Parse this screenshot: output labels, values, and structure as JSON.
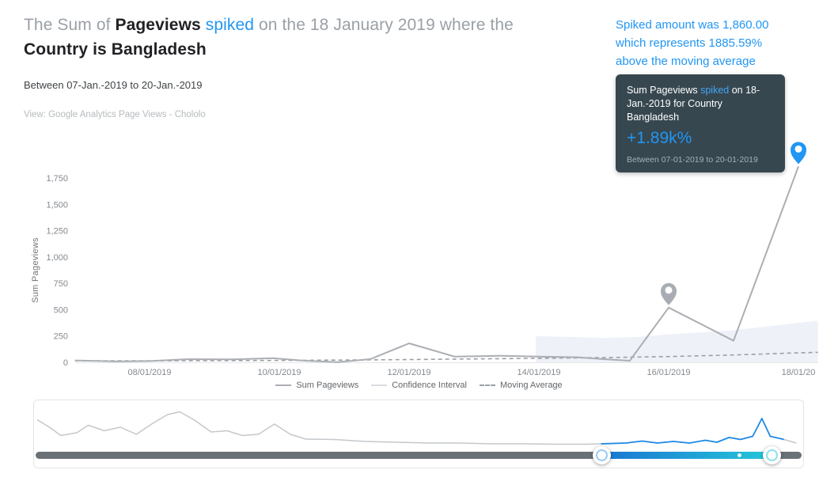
{
  "header": {
    "title_line1": [
      {
        "text": "The Sum of ",
        "style": "muted"
      },
      {
        "text": "Pageviews",
        "style": "strong"
      },
      {
        "text": " spiked ",
        "style": "accent"
      },
      {
        "text": "on the 18 January 2019 where the",
        "style": "muted"
      }
    ],
    "title_line2": [
      {
        "text": "Country is Bangladesh",
        "style": "strong"
      }
    ],
    "subtitle": "Between 07-Jan.-2019 to 20-Jan.-2019",
    "view_label": "View: Google Analytics Page Views - Chololo"
  },
  "annotation": {
    "lines": [
      "Spiked amount was 1,860.00",
      "which represents 1885.59%",
      "above the moving average"
    ]
  },
  "tooltip": {
    "text_parts": [
      "Sum Pageviews ",
      "spiked",
      " on 18-Jan.-2019 for Country Bangladesh"
    ],
    "value": "+1.89k%",
    "footer": "Between 07-01-2019 to 20-01-2019"
  },
  "chart_data": {
    "type": "line",
    "title": "",
    "xlabel": "",
    "ylabel": "Sum Pageviews",
    "ylim": [
      0,
      1950
    ],
    "x_domain_days": [
      7,
      18.3
    ],
    "x_tick_days": [
      8,
      10,
      12,
      14,
      16,
      18
    ],
    "x_tick_labels": [
      "08/01/2019",
      "10/01/2019",
      "12/01/2019",
      "14/01/2019",
      "16/01/2019",
      "18/01/20"
    ],
    "y_ticks": [
      0,
      250,
      500,
      750,
      1000,
      1250,
      1500,
      1750
    ],
    "y_tick_labels": [
      "0",
      "250",
      "500",
      "750",
      "1,000",
      "1,250",
      "1,500",
      "1,750"
    ],
    "series": [
      {
        "name": "Sum Pageviews",
        "points": [
          [
            6.85,
            18
          ],
          [
            7.5,
            8
          ],
          [
            8,
            12
          ],
          [
            8.6,
            30
          ],
          [
            9.3,
            28
          ],
          [
            9.9,
            40
          ],
          [
            10.4,
            15
          ],
          [
            10.9,
            2
          ],
          [
            11.4,
            30
          ],
          [
            12,
            180
          ],
          [
            12.7,
            55
          ],
          [
            13.4,
            62
          ],
          [
            14,
            55
          ],
          [
            14.6,
            48
          ],
          [
            15,
            30
          ],
          [
            15.4,
            15
          ],
          [
            16,
            520
          ],
          [
            17,
            205
          ],
          [
            18,
            1860
          ]
        ]
      },
      {
        "name": "Moving Average",
        "points": [
          [
            6.85,
            15
          ],
          [
            8,
            14
          ],
          [
            9,
            16
          ],
          [
            10,
            18
          ],
          [
            11,
            22
          ],
          [
            12,
            26
          ],
          [
            13,
            32
          ],
          [
            14,
            38
          ],
          [
            15,
            45
          ],
          [
            16,
            55
          ],
          [
            17,
            70
          ],
          [
            18,
            90
          ],
          [
            18.3,
            95
          ]
        ]
      },
      {
        "name": "Confidence Interval",
        "points": [
          [
            13.95,
            250
          ],
          [
            14.5,
            240
          ],
          [
            15,
            232
          ],
          [
            15.5,
            240
          ],
          [
            16,
            265
          ],
          [
            16.5,
            285
          ],
          [
            17,
            305
          ],
          [
            17.5,
            340
          ],
          [
            18,
            375
          ],
          [
            18.3,
            395
          ]
        ]
      }
    ],
    "markers": [
      {
        "name": "minor-spike-pin-icon",
        "day": 16,
        "value": 520,
        "color": "#a7adb3"
      },
      {
        "name": "major-spike-pin-icon",
        "day": 18,
        "value": 1860,
        "color": "#2196f3"
      }
    ],
    "legend": [
      {
        "label": "Sum Pageviews",
        "swatch": "solid-gray"
      },
      {
        "label": "Confidence Interval",
        "swatch": "solid-light"
      },
      {
        "label": "Moving Average",
        "swatch": "dashed"
      }
    ]
  },
  "minimap": {
    "points": [
      [
        0.0,
        0.71
      ],
      [
        0.016,
        0.52
      ],
      [
        0.031,
        0.31
      ],
      [
        0.052,
        0.38
      ],
      [
        0.067,
        0.57
      ],
      [
        0.088,
        0.43
      ],
      [
        0.109,
        0.52
      ],
      [
        0.13,
        0.34
      ],
      [
        0.15,
        0.6
      ],
      [
        0.171,
        0.84
      ],
      [
        0.187,
        0.91
      ],
      [
        0.207,
        0.69
      ],
      [
        0.228,
        0.4
      ],
      [
        0.249,
        0.43
      ],
      [
        0.269,
        0.31
      ],
      [
        0.29,
        0.34
      ],
      [
        0.311,
        0.6
      ],
      [
        0.332,
        0.34
      ],
      [
        0.352,
        0.22
      ],
      [
        0.389,
        0.21
      ],
      [
        0.43,
        0.16
      ],
      [
        0.471,
        0.14
      ],
      [
        0.513,
        0.12
      ],
      [
        0.554,
        0.12
      ],
      [
        0.596,
        0.1
      ],
      [
        0.637,
        0.1
      ],
      [
        0.679,
        0.09
      ],
      [
        0.72,
        0.09
      ],
      [
        0.739,
        0.1
      ],
      [
        0.772,
        0.12
      ],
      [
        0.793,
        0.17
      ],
      [
        0.813,
        0.12
      ],
      [
        0.834,
        0.16
      ],
      [
        0.855,
        0.12
      ],
      [
        0.876,
        0.19
      ],
      [
        0.891,
        0.14
      ],
      [
        0.907,
        0.26
      ],
      [
        0.922,
        0.21
      ],
      [
        0.938,
        0.29
      ],
      [
        0.95,
        0.74
      ],
      [
        0.961,
        0.29
      ],
      [
        0.979,
        0.21
      ],
      [
        0.995,
        0.12
      ]
    ],
    "selection": {
      "start": 0.739,
      "end": 0.961
    },
    "dot_position": 0.919
  },
  "colors": {
    "accent": "#2196f3",
    "title_muted": "#9aa0a6",
    "title_strong": "#202124",
    "tooltip_bg": "#37474f",
    "main_line": "#abaeb3",
    "ma_line": "#9aa0a6",
    "ci_band": "#eef1f8",
    "axis_line": "#e4e6e8",
    "tick_text": "#85898e",
    "mini_line": "#c4c8cc",
    "mini_selected": "#1e88e5",
    "track": "#6a7177",
    "range_gradient_start": "#1976d2",
    "range_gradient_end": "#26c6da",
    "pin_gray": "#a7adb3"
  }
}
